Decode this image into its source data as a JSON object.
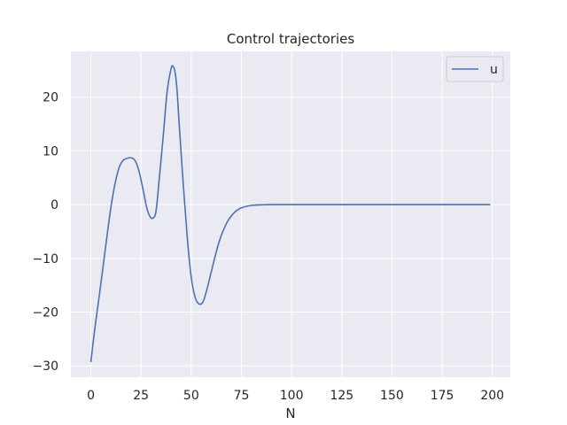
{
  "chart_data": {
    "type": "line",
    "title": "Control trajectories",
    "xlabel": "N",
    "ylabel": "",
    "xlim": [
      -9.95,
      208.95
    ],
    "ylim": [
      -32.1,
      28.5
    ],
    "xticks": [
      0,
      25,
      50,
      75,
      100,
      125,
      150,
      175,
      200
    ],
    "yticks": [
      -30,
      -20,
      -10,
      0,
      10,
      20
    ],
    "grid": true,
    "legend_position": "top-right",
    "background_color": "#eaeaf2",
    "series": [
      {
        "name": "u",
        "color": "#4c72b0",
        "x": [
          0,
          2,
          4,
          6,
          8,
          10,
          12,
          14,
          16,
          18,
          20,
          22,
          24,
          26,
          28,
          30,
          32,
          33,
          34,
          36,
          38,
          40,
          41,
          42,
          43,
          44,
          46,
          48,
          50,
          52,
          54,
          56,
          58,
          60,
          62,
          64,
          66,
          68,
          70,
          72,
          75,
          80,
          85,
          90,
          95,
          100,
          110,
          120,
          140,
          160,
          180,
          199
        ],
        "y": [
          -29.3,
          -23.0,
          -17.5,
          -11.8,
          -6.0,
          -0.5,
          3.8,
          6.8,
          8.2,
          8.6,
          8.7,
          8.2,
          6.2,
          2.8,
          -0.8,
          -2.5,
          -2.0,
          0.5,
          4.5,
          12.5,
          21.0,
          25.3,
          25.7,
          24.5,
          21.0,
          15.0,
          4.0,
          -6.0,
          -13.5,
          -17.3,
          -18.5,
          -18.0,
          -15.5,
          -12.5,
          -9.5,
          -6.8,
          -4.8,
          -3.2,
          -2.1,
          -1.3,
          -0.6,
          -0.15,
          -0.05,
          0.0,
          0.0,
          0.0,
          0.0,
          0.0,
          0.0,
          0.0,
          0.0,
          0.0
        ]
      }
    ]
  }
}
